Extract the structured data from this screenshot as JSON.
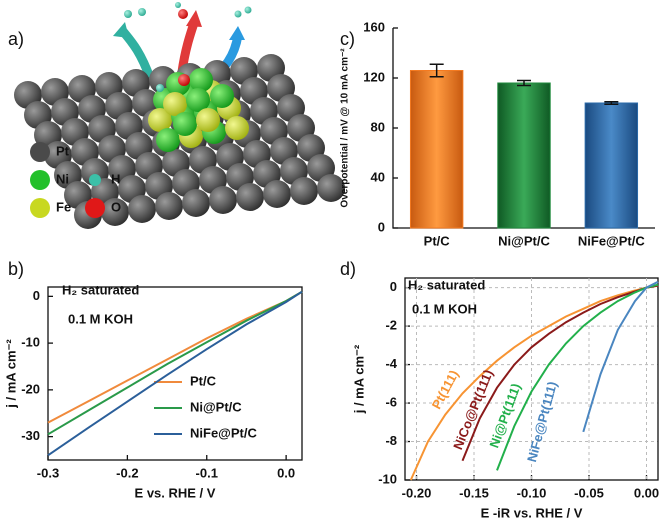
{
  "illustration": {
    "label": "a)",
    "legend": [
      {
        "label": "Pt",
        "color": "#4a4a4a"
      },
      {
        "label": "Ni",
        "color": "#22c02a"
      },
      {
        "label": "H",
        "color": "#3cc0a8"
      },
      {
        "label": "Fe",
        "color": "#c8d820"
      },
      {
        "label": "O",
        "color": "#e01818"
      }
    ]
  },
  "chart_data": [
    {
      "type": "bar",
      "label": "c)",
      "y_label": "Overpotential / mV @ 10 mA cm⁻²",
      "categories": [
        "Pt/C",
        "Ni@Pt/C",
        "NiFe@Pt/C"
      ],
      "values": [
        126,
        116,
        100
      ],
      "errors": [
        5,
        2,
        1
      ],
      "colors": [
        "#f47a20",
        "#1f8a3c",
        "#2a6aa8"
      ],
      "ylim": [
        0,
        160
      ],
      "yticks": [
        0,
        40,
        80,
        120,
        160
      ]
    },
    {
      "type": "line",
      "label": "b)",
      "x_label": "E vs. RHE / V",
      "y_label": "j / mA cm⁻²",
      "annotations": [
        "H₂ saturated",
        "0.1 M KOH"
      ],
      "legend": "lower right",
      "x": [
        -0.3,
        -0.25,
        -0.2,
        -0.15,
        -0.1,
        -0.05,
        0,
        0.02
      ],
      "series": [
        {
          "name": "Pt/C",
          "color": "#f08a3c",
          "values": [
            -27,
            -22.5,
            -18,
            -13.5,
            -9,
            -4.8,
            -1,
            1
          ]
        },
        {
          "name": "Ni@Pt/C",
          "color": "#2a9a4a",
          "values": [
            -29.5,
            -24.5,
            -19.5,
            -14.5,
            -9.8,
            -5.2,
            -1,
            1
          ]
        },
        {
          "name": "NiFe@Pt/C",
          "color": "#2b5f9a",
          "values": [
            -34,
            -28.2,
            -22.5,
            -16.8,
            -11.3,
            -6,
            -1.2,
            1
          ]
        }
      ],
      "xlim": [
        -0.3,
        0.02
      ],
      "xticks": [
        -0.3,
        -0.2,
        -0.1,
        {
          "value": 0,
          "label": "0.0"
        }
      ],
      "ylim": [
        -35,
        2
      ],
      "yticks": [
        -30,
        -20,
        -10,
        0
      ],
      "grid": false
    },
    {
      "type": "line",
      "label": "d)",
      "x_label": "E -iR vs. RHE / V",
      "y_label": "j / mA cm⁻²",
      "annotations": [
        "H₂ saturated",
        "0.1 M KOH"
      ],
      "legend": "inline",
      "x": [
        -0.205,
        -0.19,
        -0.175,
        -0.16,
        -0.145,
        -0.13,
        -0.115,
        -0.1,
        -0.085,
        -0.07,
        -0.055,
        -0.04,
        -0.025,
        -0.01,
        0,
        0.01
      ],
      "series": [
        {
          "name": "Pt(111)",
          "color": "#f79433",
          "values": [
            -10,
            -8,
            -6.6,
            -5.5,
            -4.6,
            -3.8,
            -3.1,
            -2.5,
            -2.0,
            -1.5,
            -1.1,
            -0.7,
            -0.4,
            -0.15,
            0,
            0.1
          ]
        },
        {
          "name": "NiCo@Pt(111)",
          "color": "#8b1a1a",
          "values": [
            null,
            null,
            null,
            -9.0,
            -6.8,
            -5.2,
            -4.0,
            -3.1,
            -2.4,
            -1.8,
            -1.3,
            -0.85,
            -0.5,
            -0.2,
            0,
            0.1
          ]
        },
        {
          "name": "Ni@Pt(111)",
          "color": "#22b04b",
          "values": [
            null,
            null,
            null,
            null,
            null,
            -9.5,
            -7.2,
            -5.4,
            -4.0,
            -2.9,
            -2.0,
            -1.3,
            -0.7,
            -0.25,
            0,
            0.15
          ]
        },
        {
          "name": "NiFe@Pt(111)",
          "color": "#4a86c0",
          "values": [
            null,
            null,
            null,
            null,
            null,
            null,
            null,
            null,
            null,
            null,
            -7.5,
            -4.5,
            -2.2,
            -0.7,
            0,
            0.3
          ]
        }
      ],
      "xlim": [
        -0.21,
        0.01
      ],
      "xticks": [
        {
          "value": -0.2,
          "label": "-0.20"
        },
        {
          "value": -0.15,
          "label": "-0.15"
        },
        {
          "value": -0.1,
          "label": "-0.10"
        },
        {
          "value": -0.05,
          "label": "-0.05"
        },
        {
          "value": 0,
          "label": "0.00"
        }
      ],
      "ylim": [
        -10,
        0.5
      ],
      "yticks": [
        -10,
        -8,
        -6,
        -4,
        -2,
        0
      ],
      "grid": true
    }
  ]
}
